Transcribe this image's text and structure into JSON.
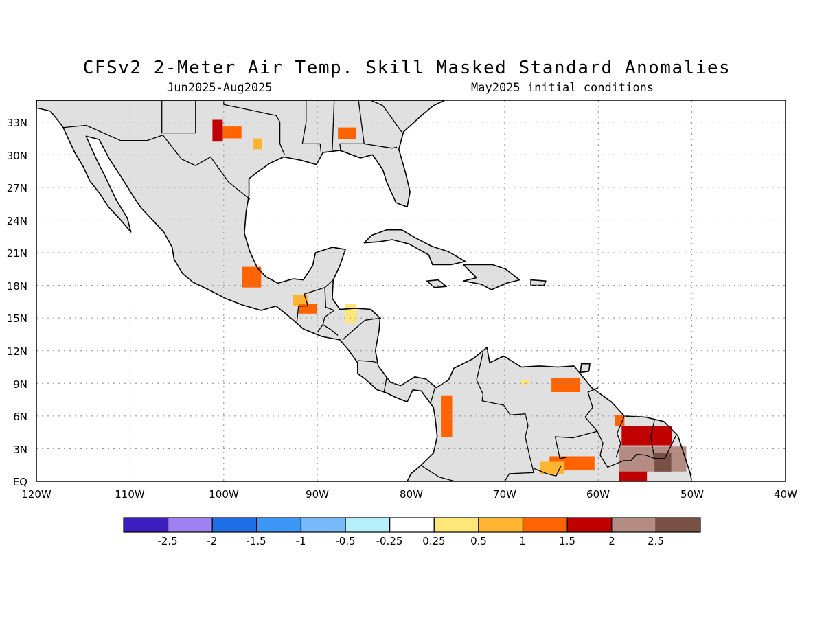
{
  "header": {
    "title": "CFSv2 2-Meter Air Temp. Skill Masked Standard Anomalies",
    "period": "Jun2025-Aug2025",
    "init": "May2025 initial conditions"
  },
  "axes": {
    "lat_labels": [
      "33N",
      "30N",
      "27N",
      "24N",
      "21N",
      "18N",
      "15N",
      "12N",
      "9N",
      "6N",
      "3N",
      "EQ"
    ],
    "lat_values": [
      33,
      30,
      27,
      24,
      21,
      18,
      15,
      12,
      9,
      6,
      3,
      0
    ],
    "lon_labels": [
      "120W",
      "110W",
      "100W",
      "90W",
      "80W",
      "70W",
      "60W",
      "50W",
      "40W"
    ],
    "lon_values": [
      -120,
      -110,
      -100,
      -90,
      -80,
      -70,
      -60,
      -50,
      -40
    ]
  },
  "map": {
    "region": {
      "lon_min": -120,
      "lon_max": -40,
      "lat_min": 0,
      "lat_max": 35
    },
    "land_color": "#e0e0e0",
    "ocean_color": "#ffffff",
    "anomaly_cells": [
      {
        "lon": -101.2,
        "lat": 31.2,
        "w": 1.1,
        "h": 2.0,
        "color": "#c00000"
      },
      {
        "lon": -100.1,
        "lat": 31.5,
        "w": 2.0,
        "h": 1.1,
        "color": "#ff6400"
      },
      {
        "lon": -96.9,
        "lat": 30.5,
        "w": 1.0,
        "h": 1.0,
        "color": "#ffb432"
      },
      {
        "lon": -87.8,
        "lat": 31.4,
        "w": 1.9,
        "h": 1.1,
        "color": "#ff6400"
      },
      {
        "lon": -98.0,
        "lat": 17.8,
        "w": 2.0,
        "h": 1.9,
        "color": "#ff6400"
      },
      {
        "lon": -92.6,
        "lat": 16.1,
        "w": 1.6,
        "h": 1.0,
        "color": "#ffb432"
      },
      {
        "lon": -92.0,
        "lat": 15.4,
        "w": 2.0,
        "h": 0.9,
        "color": "#ff6400"
      },
      {
        "lon": -87.0,
        "lat": 14.5,
        "w": 1.2,
        "h": 1.8,
        "color": "#ffe678"
      },
      {
        "lon": -76.8,
        "lat": 4.1,
        "w": 1.2,
        "h": 3.8,
        "color": "#ff6400"
      },
      {
        "lon": -65.0,
        "lat": 8.2,
        "w": 3.0,
        "h": 1.3,
        "color": "#ff6400"
      },
      {
        "lon": -68.2,
        "lat": 8.9,
        "w": 0.8,
        "h": 0.4,
        "color": "#ffe678"
      },
      {
        "lon": -58.2,
        "lat": 5.1,
        "w": 1.0,
        "h": 1.0,
        "color": "#ff6400"
      },
      {
        "lon": -57.5,
        "lat": 3.3,
        "w": 5.4,
        "h": 1.8,
        "color": "#c00000"
      },
      {
        "lon": -57.8,
        "lat": 0.9,
        "w": 7.2,
        "h": 2.3,
        "color": "#b48c82"
      },
      {
        "lon": -57.8,
        "lat": 0.0,
        "w": 3.0,
        "h": 0.9,
        "color": "#c00000"
      },
      {
        "lon": -54.0,
        "lat": 0.9,
        "w": 1.8,
        "h": 1.7,
        "color": "#785046"
      },
      {
        "lon": -65.2,
        "lat": 1.0,
        "w": 4.8,
        "h": 1.3,
        "color": "#ff6400"
      },
      {
        "lon": -66.2,
        "lat": 0.7,
        "w": 2.6,
        "h": 1.1,
        "color": "#ffb432"
      }
    ]
  },
  "colorbar": {
    "colors": [
      "#3c1ebe",
      "#9e82f0",
      "#1e6ee6",
      "#3c96f5",
      "#78b9fa",
      "#b4f0fa",
      "#ffffff",
      "#ffe678",
      "#ffb432",
      "#ff6400",
      "#c00000",
      "#b48c82",
      "#785046"
    ],
    "labels": [
      "-2.5",
      "-2",
      "-1.5",
      "-1",
      "-0.5",
      "-0.25",
      "0.25",
      "0.5",
      "1",
      "1.5",
      "2",
      "2.5"
    ]
  }
}
